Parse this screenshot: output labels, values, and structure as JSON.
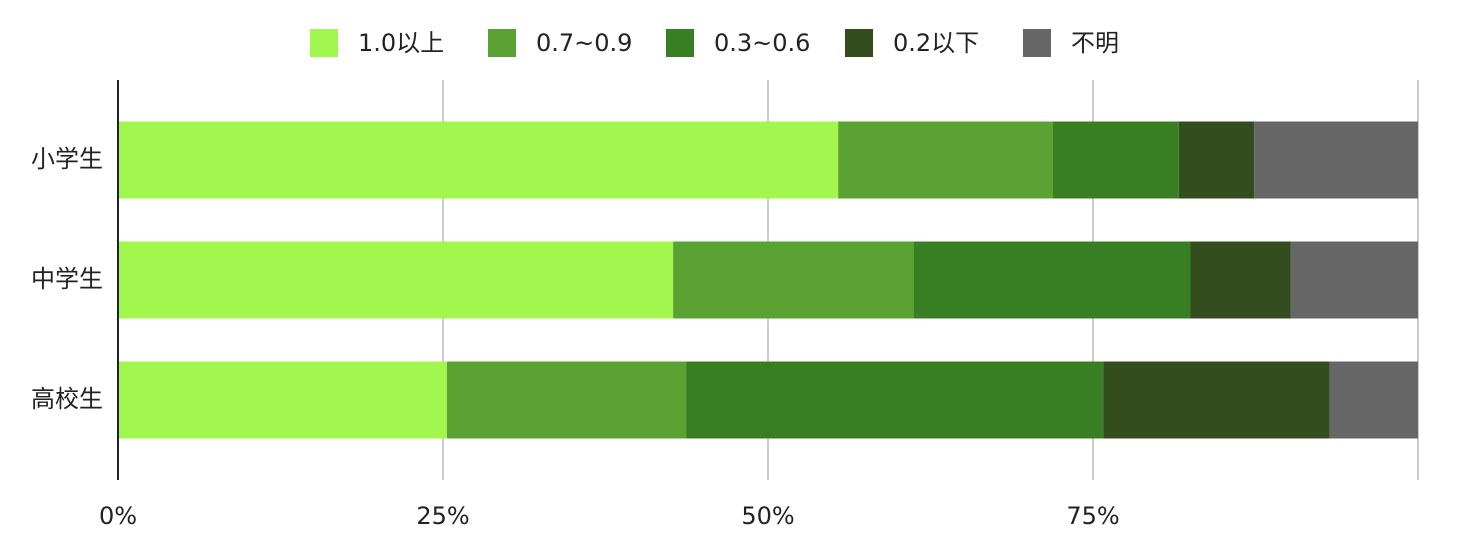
{
  "chart_data": {
    "type": "bar",
    "orientation": "horizontal",
    "stacked": true,
    "categories": [
      "小学生",
      "中学生",
      "高校生"
    ],
    "series": [
      {
        "name": "1.0以上",
        "color": "#a2f74f",
        "values": [
          55.4,
          42.7,
          25.3
        ]
      },
      {
        "name": "0.7~0.9",
        "color": "#5aa332",
        "values": [
          16.5,
          18.5,
          18.4
        ]
      },
      {
        "name": "0.3~0.6",
        "color": "#387f24",
        "values": [
          9.7,
          21.3,
          32.1
        ]
      },
      {
        "name": "0.2以下",
        "color": "#344d1f",
        "values": [
          5.8,
          7.7,
          17.4
        ]
      },
      {
        "name": "不明",
        "color": "#666666",
        "values": [
          12.6,
          9.8,
          6.8
        ]
      }
    ],
    "xlim": [
      0,
      100
    ],
    "xticks": [
      {
        "value": 0,
        "label": "0%"
      },
      {
        "value": 25,
        "label": "25%"
      },
      {
        "value": 50,
        "label": "50%"
      },
      {
        "value": 75,
        "label": "75%"
      }
    ],
    "grid": true,
    "legend": "top"
  }
}
